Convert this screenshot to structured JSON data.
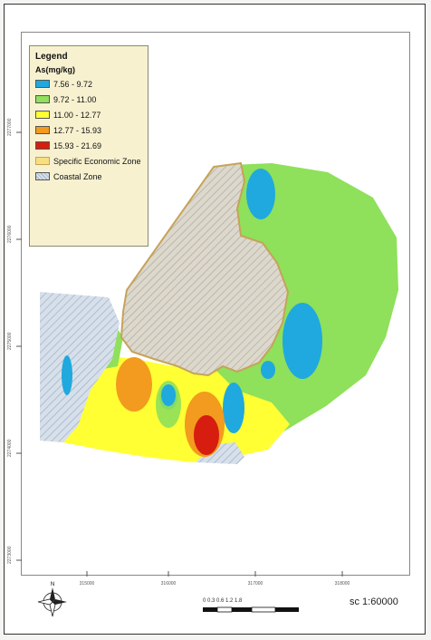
{
  "legend": {
    "title": "Legend",
    "subtitle": "As(mg/kg)",
    "items": [
      {
        "label": "7.56 - 9.72",
        "color": "#1fa9de"
      },
      {
        "label": "9.72 - 11.00",
        "color": "#8fe05a"
      },
      {
        "label": "11.00 - 12.77",
        "color": "#ffff33"
      },
      {
        "label": "12.77 - 15.93",
        "color": "#f29b1e"
      },
      {
        "label": "15.93 - 21.69",
        "color": "#d61d10"
      },
      {
        "label": "Specific Economic Zone",
        "color": "#f7df80"
      },
      {
        "label": "Coastal Zone",
        "color": "#d7e0ea"
      }
    ]
  },
  "scale": {
    "text": "sc 1:60000",
    "ticks": "0 0.3 0.6 1.2 1.8"
  },
  "north_arrow": {
    "label": "N"
  },
  "x_ticks": [
    "315000",
    "316000",
    "317000",
    "318000"
  ],
  "y_ticks": [
    "2277000",
    "2276000",
    "2275000",
    "2274000",
    "2273000"
  ]
}
